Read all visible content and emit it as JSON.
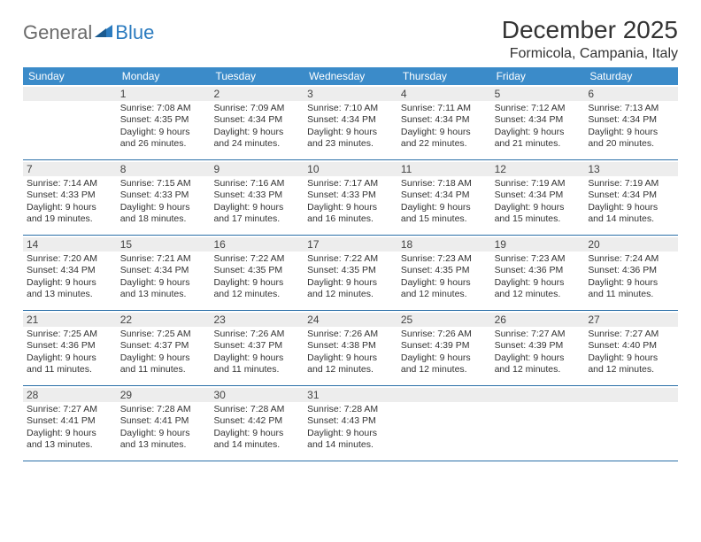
{
  "logo": {
    "text1": "General",
    "text2": "Blue"
  },
  "title": "December 2025",
  "location": "Formicola, Campania, Italy",
  "colors": {
    "header_bg": "#3b8bc9",
    "header_text": "#ffffff",
    "daynum_bg": "#ededed",
    "border": "#2b6fa8",
    "logo_gray": "#6b6b6b",
    "logo_blue": "#2b7bbf"
  },
  "day_names": [
    "Sunday",
    "Monday",
    "Tuesday",
    "Wednesday",
    "Thursday",
    "Friday",
    "Saturday"
  ],
  "weeks": [
    [
      {
        "n": "",
        "sr": "",
        "ss": "",
        "dl": ""
      },
      {
        "n": "1",
        "sr": "Sunrise: 7:08 AM",
        "ss": "Sunset: 4:35 PM",
        "dl": "Daylight: 9 hours and 26 minutes."
      },
      {
        "n": "2",
        "sr": "Sunrise: 7:09 AM",
        "ss": "Sunset: 4:34 PM",
        "dl": "Daylight: 9 hours and 24 minutes."
      },
      {
        "n": "3",
        "sr": "Sunrise: 7:10 AM",
        "ss": "Sunset: 4:34 PM",
        "dl": "Daylight: 9 hours and 23 minutes."
      },
      {
        "n": "4",
        "sr": "Sunrise: 7:11 AM",
        "ss": "Sunset: 4:34 PM",
        "dl": "Daylight: 9 hours and 22 minutes."
      },
      {
        "n": "5",
        "sr": "Sunrise: 7:12 AM",
        "ss": "Sunset: 4:34 PM",
        "dl": "Daylight: 9 hours and 21 minutes."
      },
      {
        "n": "6",
        "sr": "Sunrise: 7:13 AM",
        "ss": "Sunset: 4:34 PM",
        "dl": "Daylight: 9 hours and 20 minutes."
      }
    ],
    [
      {
        "n": "7",
        "sr": "Sunrise: 7:14 AM",
        "ss": "Sunset: 4:33 PM",
        "dl": "Daylight: 9 hours and 19 minutes."
      },
      {
        "n": "8",
        "sr": "Sunrise: 7:15 AM",
        "ss": "Sunset: 4:33 PM",
        "dl": "Daylight: 9 hours and 18 minutes."
      },
      {
        "n": "9",
        "sr": "Sunrise: 7:16 AM",
        "ss": "Sunset: 4:33 PM",
        "dl": "Daylight: 9 hours and 17 minutes."
      },
      {
        "n": "10",
        "sr": "Sunrise: 7:17 AM",
        "ss": "Sunset: 4:33 PM",
        "dl": "Daylight: 9 hours and 16 minutes."
      },
      {
        "n": "11",
        "sr": "Sunrise: 7:18 AM",
        "ss": "Sunset: 4:34 PM",
        "dl": "Daylight: 9 hours and 15 minutes."
      },
      {
        "n": "12",
        "sr": "Sunrise: 7:19 AM",
        "ss": "Sunset: 4:34 PM",
        "dl": "Daylight: 9 hours and 15 minutes."
      },
      {
        "n": "13",
        "sr": "Sunrise: 7:19 AM",
        "ss": "Sunset: 4:34 PM",
        "dl": "Daylight: 9 hours and 14 minutes."
      }
    ],
    [
      {
        "n": "14",
        "sr": "Sunrise: 7:20 AM",
        "ss": "Sunset: 4:34 PM",
        "dl": "Daylight: 9 hours and 13 minutes."
      },
      {
        "n": "15",
        "sr": "Sunrise: 7:21 AM",
        "ss": "Sunset: 4:34 PM",
        "dl": "Daylight: 9 hours and 13 minutes."
      },
      {
        "n": "16",
        "sr": "Sunrise: 7:22 AM",
        "ss": "Sunset: 4:35 PM",
        "dl": "Daylight: 9 hours and 12 minutes."
      },
      {
        "n": "17",
        "sr": "Sunrise: 7:22 AM",
        "ss": "Sunset: 4:35 PM",
        "dl": "Daylight: 9 hours and 12 minutes."
      },
      {
        "n": "18",
        "sr": "Sunrise: 7:23 AM",
        "ss": "Sunset: 4:35 PM",
        "dl": "Daylight: 9 hours and 12 minutes."
      },
      {
        "n": "19",
        "sr": "Sunrise: 7:23 AM",
        "ss": "Sunset: 4:36 PM",
        "dl": "Daylight: 9 hours and 12 minutes."
      },
      {
        "n": "20",
        "sr": "Sunrise: 7:24 AM",
        "ss": "Sunset: 4:36 PM",
        "dl": "Daylight: 9 hours and 11 minutes."
      }
    ],
    [
      {
        "n": "21",
        "sr": "Sunrise: 7:25 AM",
        "ss": "Sunset: 4:36 PM",
        "dl": "Daylight: 9 hours and 11 minutes."
      },
      {
        "n": "22",
        "sr": "Sunrise: 7:25 AM",
        "ss": "Sunset: 4:37 PM",
        "dl": "Daylight: 9 hours and 11 minutes."
      },
      {
        "n": "23",
        "sr": "Sunrise: 7:26 AM",
        "ss": "Sunset: 4:37 PM",
        "dl": "Daylight: 9 hours and 11 minutes."
      },
      {
        "n": "24",
        "sr": "Sunrise: 7:26 AM",
        "ss": "Sunset: 4:38 PM",
        "dl": "Daylight: 9 hours and 12 minutes."
      },
      {
        "n": "25",
        "sr": "Sunrise: 7:26 AM",
        "ss": "Sunset: 4:39 PM",
        "dl": "Daylight: 9 hours and 12 minutes."
      },
      {
        "n": "26",
        "sr": "Sunrise: 7:27 AM",
        "ss": "Sunset: 4:39 PM",
        "dl": "Daylight: 9 hours and 12 minutes."
      },
      {
        "n": "27",
        "sr": "Sunrise: 7:27 AM",
        "ss": "Sunset: 4:40 PM",
        "dl": "Daylight: 9 hours and 12 minutes."
      }
    ],
    [
      {
        "n": "28",
        "sr": "Sunrise: 7:27 AM",
        "ss": "Sunset: 4:41 PM",
        "dl": "Daylight: 9 hours and 13 minutes."
      },
      {
        "n": "29",
        "sr": "Sunrise: 7:28 AM",
        "ss": "Sunset: 4:41 PM",
        "dl": "Daylight: 9 hours and 13 minutes."
      },
      {
        "n": "30",
        "sr": "Sunrise: 7:28 AM",
        "ss": "Sunset: 4:42 PM",
        "dl": "Daylight: 9 hours and 14 minutes."
      },
      {
        "n": "31",
        "sr": "Sunrise: 7:28 AM",
        "ss": "Sunset: 4:43 PM",
        "dl": "Daylight: 9 hours and 14 minutes."
      },
      {
        "n": "",
        "sr": "",
        "ss": "",
        "dl": ""
      },
      {
        "n": "",
        "sr": "",
        "ss": "",
        "dl": ""
      },
      {
        "n": "",
        "sr": "",
        "ss": "",
        "dl": ""
      }
    ]
  ]
}
